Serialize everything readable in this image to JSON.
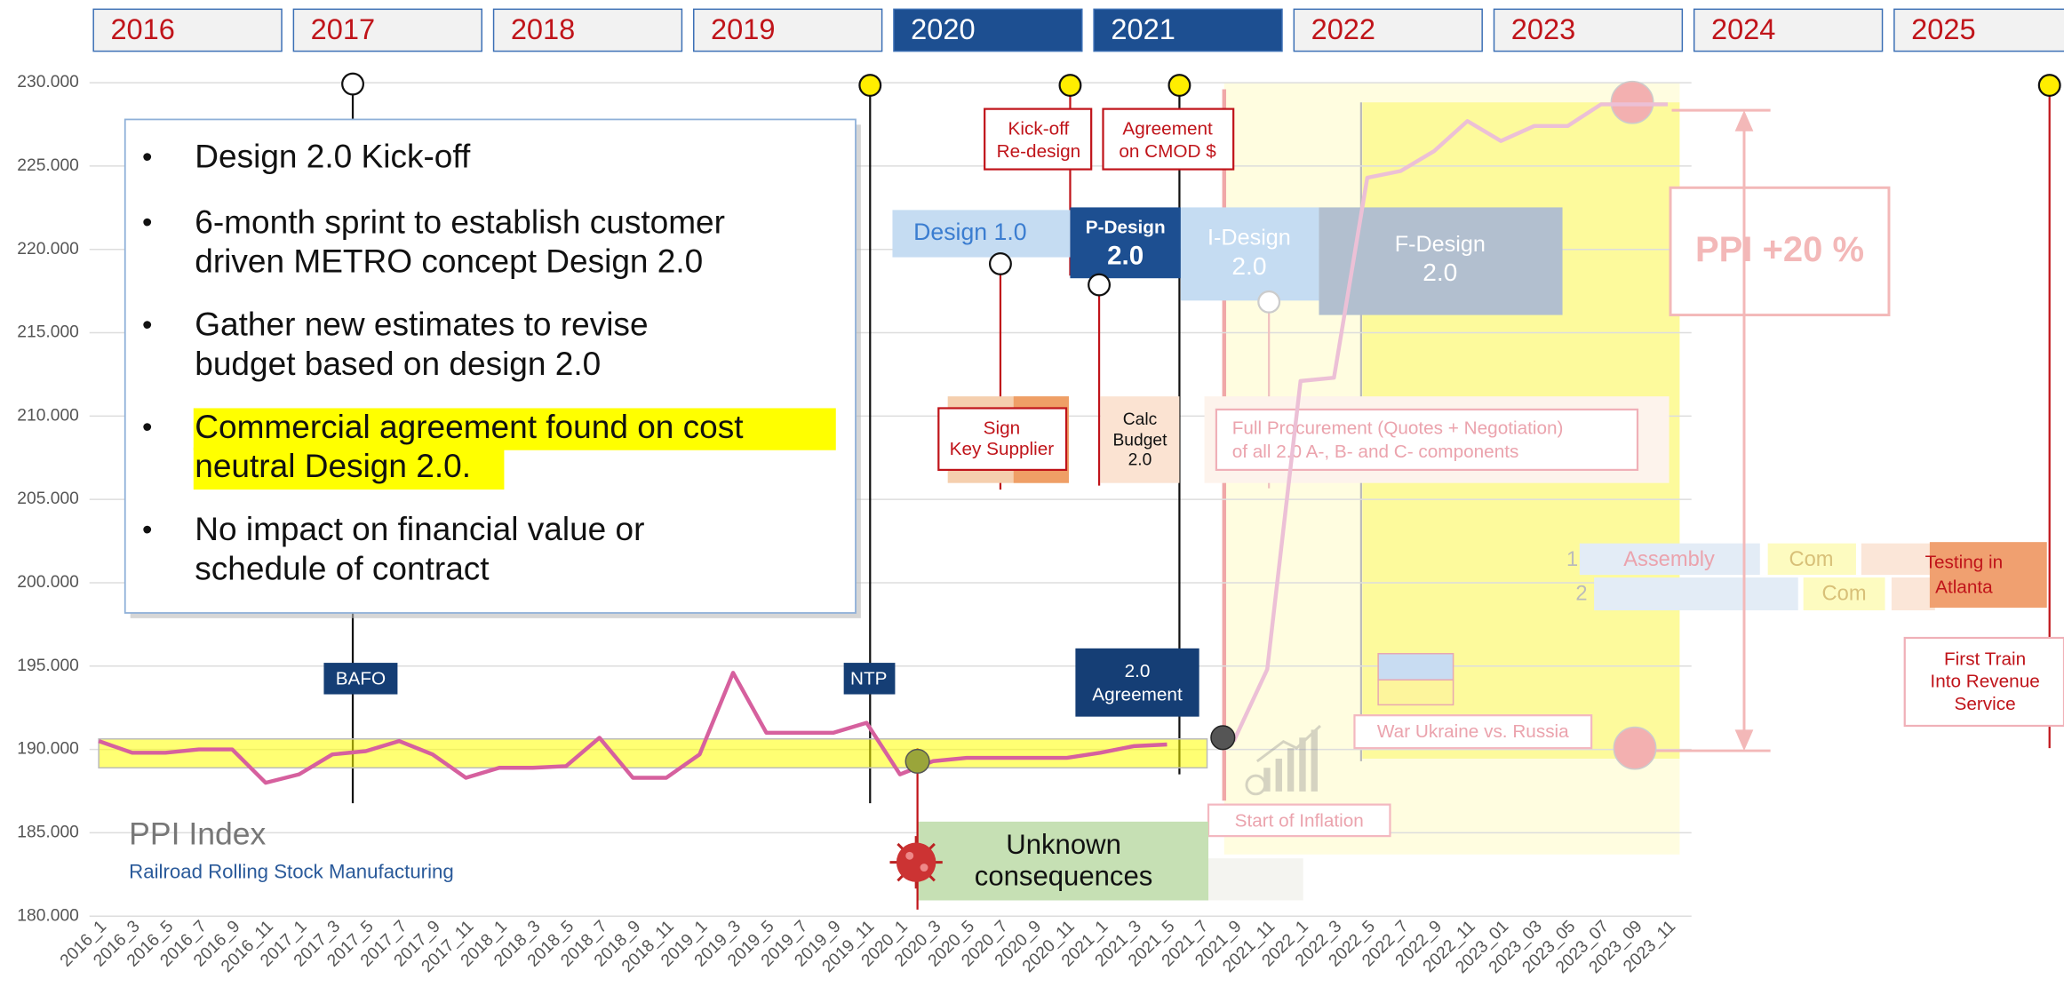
{
  "timeline": {
    "years": [
      "2016",
      "2017",
      "2018",
      "2019",
      "2020",
      "2021",
      "2022",
      "2023",
      "2024",
      "2025"
    ]
  },
  "chart_data": {
    "type": "line",
    "title": "PPI Index",
    "subtitle": "Railroad Rolling Stock Manufacturing",
    "categories": [
      "2016_1",
      "2016_3",
      "2016_5",
      "2016_7",
      "2016_9",
      "2016_11",
      "2017_1",
      "2017_3",
      "2017_5",
      "2017_7",
      "2017_9",
      "2017_11",
      "2018_1",
      "2018_3",
      "2018_5",
      "2018_7",
      "2018_9",
      "2018_11",
      "2019_1",
      "2019_3",
      "2019_5",
      "2019_7",
      "2019_9",
      "2019_11",
      "2020_1",
      "2020_3",
      "2020_5",
      "2020_7",
      "2020_9",
      "2020_11",
      "2021_1",
      "2021_3",
      "2021_5",
      "2021_7",
      "2021_9",
      "2021_11",
      "2022_1",
      "2022_3",
      "2022_5",
      "2022_7",
      "2022_9",
      "2022_11",
      "2023_01",
      "2023_03",
      "2023_05",
      "2023_07",
      "2023_09",
      "2023_11"
    ],
    "series": [
      {
        "color": "#d6609e",
        "values": [
          190.5,
          189.8,
          189.8,
          190.0,
          190.0,
          188.0,
          188.5,
          189.7,
          189.9,
          190.5,
          189.7,
          188.3,
          188.9,
          188.9,
          189.0,
          190.7,
          188.3,
          188.3,
          189.7,
          194.6,
          191.0,
          191.0,
          191.0,
          191.6,
          188.5,
          189.3,
          189.5,
          189.5,
          189.5,
          189.5,
          189.8,
          190.2,
          190.3,
          null,
          null,
          null,
          null,
          null,
          null,
          null,
          null,
          null,
          null,
          null,
          null,
          null,
          null,
          null
        ]
      },
      {
        "color": "#ecc0d6",
        "values": [
          null,
          null,
          null,
          null,
          null,
          null,
          null,
          null,
          null,
          null,
          null,
          null,
          null,
          null,
          null,
          null,
          null,
          null,
          null,
          null,
          null,
          null,
          null,
          null,
          null,
          null,
          null,
          null,
          null,
          null,
          null,
          null,
          null,
          null,
          190.5,
          194.8,
          212.1,
          212.3,
          224.3,
          224.7,
          225.9,
          227.7,
          226.5,
          227.4,
          227.4,
          228.7,
          228.7,
          228.7
        ]
      }
    ],
    "ylim": [
      180,
      230
    ],
    "yticks": [
      {
        "value": 180,
        "label": "180.000"
      },
      {
        "value": 185,
        "label": "185.000"
      },
      {
        "value": 190,
        "label": "190.000"
      },
      {
        "value": 195,
        "label": "195.000"
      },
      {
        "value": 200,
        "label": "200.000"
      },
      {
        "value": 205,
        "label": "205.000"
      },
      {
        "value": 210,
        "label": "210.000"
      },
      {
        "value": 215,
        "label": "215.000"
      },
      {
        "value": 220,
        "label": "220.000"
      },
      {
        "value": 225,
        "label": "225.000"
      },
      {
        "value": 230,
        "label": "230.000"
      }
    ],
    "grid": true
  },
  "callout": {
    "bullets": [
      [
        "Design 2.0 Kick-off"
      ],
      [
        "6-month sprint to establish customer",
        "driven METRO concept Design 2.0"
      ],
      [
        "Gather new estimates to revise",
        "budget based on design 2.0"
      ],
      [
        "Commercial agreement found on cost",
        "neutral Design 2.0."
      ],
      [
        "No impact on financial value or",
        "schedule of contract"
      ]
    ]
  },
  "milestones": {
    "bafo": "BAFO",
    "ntp": "NTP",
    "kickoff": [
      "Kick-off",
      "Re-design"
    ],
    "cmod": [
      "Agreement",
      "on CMOD $"
    ],
    "agreement": [
      "2.0",
      "Agreement"
    ],
    "first_train": [
      "First Train",
      "Into Revenue",
      "Service"
    ],
    "testing": [
      "Testing in",
      "Atlanta"
    ]
  },
  "phases": {
    "design1": "Design 1.0",
    "pdesign": [
      "P-Design",
      "2.0"
    ],
    "idesign": [
      "I-Design",
      "2.0"
    ],
    "fdesign": [
      "F-Design",
      "2.0"
    ],
    "supplier": [
      "Sign",
      "Key Supplier"
    ],
    "budget": [
      "Calc",
      "Budget",
      "2.0"
    ],
    "procurement": [
      "Full Procurement (Quotes + Negotiation)",
      "of all 2.0 A-, B- and C- components"
    ],
    "rows": [
      {
        "number": "1",
        "tasks": [
          "Assembly",
          "Com"
        ]
      },
      {
        "number": "2",
        "tasks": [
          "Com"
        ]
      }
    ]
  },
  "events": {
    "covid": [
      "Unknown",
      "consequences"
    ],
    "inflation": "Start of Inflation",
    "war": "War Ukraine vs. Russia",
    "ppi_change": "PPI +20 %"
  }
}
